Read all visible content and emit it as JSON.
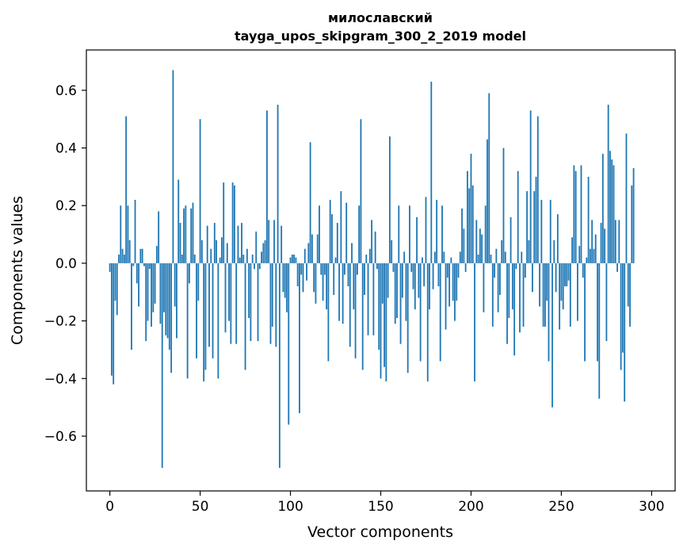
{
  "chart_data": {
    "type": "bar",
    "title_lines": [
      "милославский",
      "tayga_upos_skipgram_300_2_2019 model"
    ],
    "xlabel": "Vector components",
    "ylabel": "Components values",
    "xlim": [
      -13,
      313
    ],
    "ylim": [
      -0.79,
      0.74
    ],
    "xticks": [
      0,
      50,
      100,
      150,
      200,
      250,
      300
    ],
    "yticks": [
      -0.6,
      -0.4,
      -0.2,
      0.0,
      0.2,
      0.4,
      0.6
    ],
    "ytick_labels": [
      "−0.6",
      "−0.4",
      "−0.2",
      "0.0",
      "0.2",
      "0.4",
      "0.6"
    ],
    "bar_color": "#1f77b4",
    "grid": false,
    "values": [
      -0.03,
      -0.39,
      -0.42,
      -0.13,
      -0.18,
      0.03,
      0.2,
      0.05,
      0.03,
      0.51,
      0.2,
      0.08,
      -0.3,
      -0.01,
      0.22,
      -0.07,
      -0.15,
      0.05,
      0.05,
      -0.01,
      -0.27,
      -0.2,
      -0.02,
      -0.22,
      -0.17,
      -0.14,
      0.06,
      0.18,
      -0.21,
      -0.71,
      -0.17,
      -0.25,
      -0.26,
      -0.3,
      -0.38,
      0.67,
      -0.15,
      -0.26,
      0.29,
      0.14,
      0.03,
      0.19,
      0.2,
      -0.4,
      -0.07,
      0.19,
      0.21,
      0.03,
      -0.33,
      -0.13,
      0.5,
      0.08,
      -0.41,
      -0.37,
      0.13,
      -0.29,
      0.05,
      -0.33,
      0.14,
      0.08,
      -0.4,
      0.02,
      0.09,
      0.28,
      -0.24,
      0.07,
      -0.2,
      -0.28,
      0.28,
      0.27,
      -0.28,
      0.13,
      0.02,
      0.14,
      0.03,
      -0.37,
      0.05,
      -0.19,
      -0.27,
      0.03,
      -0.02,
      0.11,
      -0.27,
      -0.02,
      0.04,
      0.07,
      0.08,
      0.53,
      0.15,
      -0.28,
      -0.22,
      0.15,
      -0.29,
      0.55,
      -0.71,
      0.13,
      -0.1,
      -0.12,
      -0.17,
      -0.56,
      0.02,
      0.03,
      0.03,
      0.02,
      -0.08,
      -0.52,
      -0.04,
      -0.1,
      0.05,
      -0.06,
      0.07,
      0.42,
      0.1,
      -0.1,
      -0.14,
      0.1,
      0.2,
      -0.04,
      -0.13,
      -0.04,
      -0.16,
      -0.34,
      0.22,
      0.17,
      -0.11,
      0.02,
      0.14,
      -0.2,
      0.25,
      -0.21,
      -0.04,
      0.21,
      -0.08,
      -0.29,
      0.07,
      -0.16,
      -0.33,
      -0.04,
      0.2,
      0.5,
      -0.37,
      -0.11,
      0.03,
      -0.25,
      0.05,
      0.15,
      -0.25,
      0.11,
      -0.02,
      -0.3,
      -0.4,
      -0.14,
      -0.36,
      -0.41,
      -0.12,
      0.44,
      0.08,
      -0.03,
      -0.21,
      -0.19,
      0.2,
      -0.28,
      -0.12,
      0.04,
      -0.2,
      -0.38,
      0.2,
      -0.03,
      -0.09,
      -0.16,
      0.16,
      -0.12,
      -0.34,
      0.02,
      -0.08,
      0.23,
      -0.41,
      -0.16,
      0.63,
      -0.09,
      0.04,
      0.22,
      -0.08,
      -0.34,
      0.2,
      0.04,
      -0.23,
      -0.05,
      -0.15,
      0.02,
      -0.13,
      -0.2,
      -0.13,
      -0.05,
      0.04,
      0.19,
      0.12,
      -0.03,
      0.32,
      0.26,
      0.38,
      0.27,
      -0.41,
      0.15,
      0.03,
      0.12,
      0.1,
      -0.17,
      0.2,
      0.43,
      0.59,
      0.03,
      -0.22,
      -0.05,
      0.05,
      -0.17,
      -0.11,
      0.08,
      0.4,
      0.04,
      -0.28,
      -0.19,
      0.16,
      -0.16,
      -0.32,
      -0.02,
      0.32,
      -0.24,
      0.04,
      -0.22,
      -0.05,
      0.25,
      0.08,
      0.53,
      -0.1,
      0.25,
      0.3,
      0.51,
      -0.15,
      0.22,
      -0.22,
      -0.22,
      -0.13,
      -0.34,
      0.22,
      -0.5,
      0.08,
      -0.1,
      0.17,
      -0.23,
      -0.13,
      -0.16,
      -0.08,
      -0.08,
      -0.06,
      -0.22,
      0.09,
      0.34,
      0.32,
      -0.2,
      0.06,
      0.34,
      -0.05,
      -0.34,
      0.02,
      0.3,
      0.05,
      0.15,
      0.05,
      0.1,
      -0.34,
      -0.47,
      0.14,
      0.38,
      0.12,
      -0.27,
      0.55,
      0.39,
      0.36,
      0.34,
      0.15,
      -0.03,
      0.15,
      -0.37,
      -0.31,
      -0.48,
      0.45,
      -0.15,
      -0.22,
      0.27,
      0.33
    ]
  }
}
